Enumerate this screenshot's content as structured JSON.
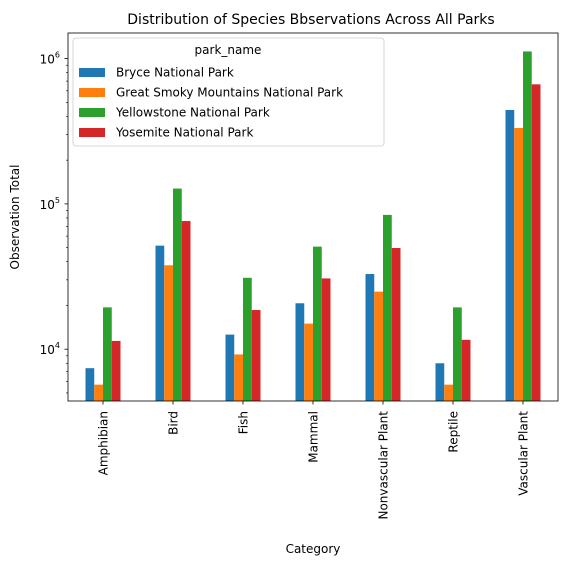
{
  "chart_data": {
    "type": "bar",
    "title": "Distribution of Species Bbservations Across All Parks",
    "xlabel": "Category",
    "ylabel": "Observation Total",
    "yscale": "log",
    "ylim": [
      4400,
      1500000
    ],
    "y_ticks": [
      {
        "value": 10000,
        "base": "10",
        "exp": "4"
      },
      {
        "value": 100000,
        "base": "10",
        "exp": "5"
      },
      {
        "value": 1000000,
        "base": "10",
        "exp": "6"
      }
    ],
    "categories": [
      "Amphibian",
      "Bird",
      "Fish",
      "Mammal",
      "Nonvascular Plant",
      "Reptile",
      "Vascular Plant"
    ],
    "legend": {
      "title": "park_name",
      "position": "upper left"
    },
    "series": [
      {
        "name": "Bryce National Park",
        "color": "#1f77b4",
        "values": [
          7400,
          51600,
          12600,
          20700,
          32900,
          8000,
          443000
        ]
      },
      {
        "name": "Great Smoky Mountains National Park",
        "color": "#ff7f0e",
        "values": [
          5700,
          37800,
          9200,
          15000,
          24900,
          5700,
          333000
        ]
      },
      {
        "name": "Yellowstone National Park",
        "color": "#2ca02c",
        "values": [
          19400,
          127500,
          31000,
          50800,
          84000,
          19400,
          1120000
        ]
      },
      {
        "name": "Yosemite National Park",
        "color": "#d62728",
        "values": [
          11400,
          76200,
          18600,
          30700,
          49700,
          11600,
          665000
        ]
      }
    ]
  }
}
